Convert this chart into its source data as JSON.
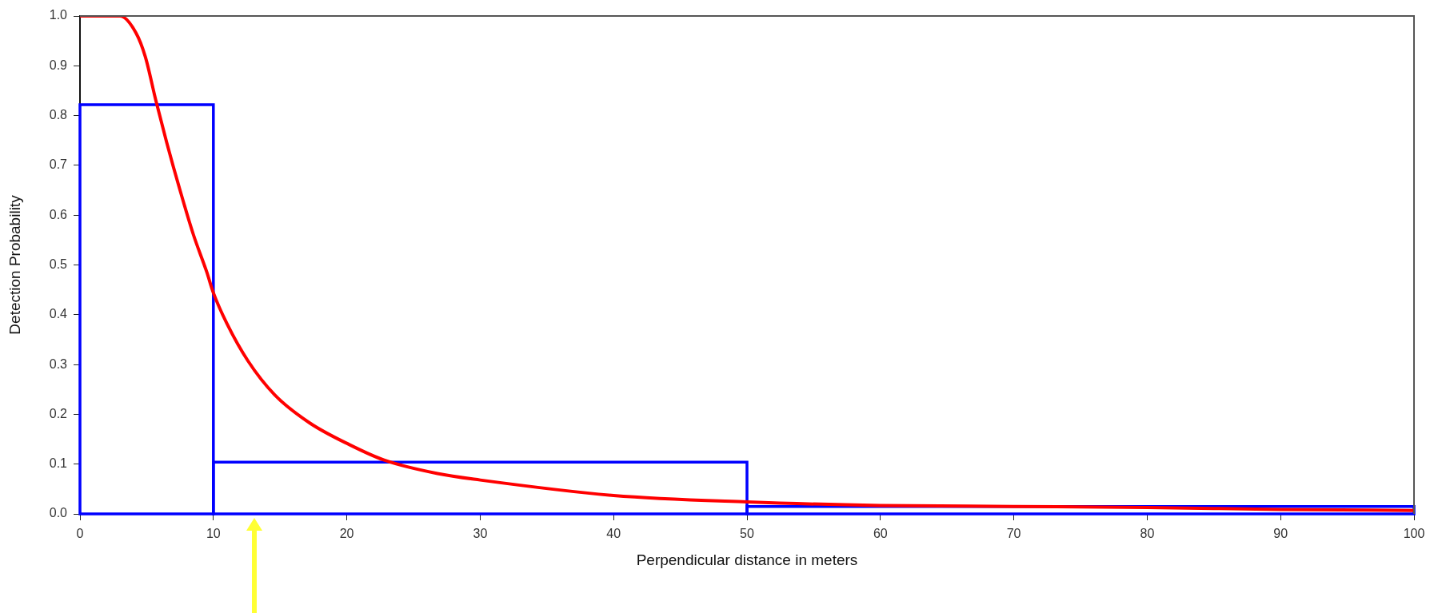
{
  "chart_data": {
    "type": "line",
    "xlabel": "Perpendicular distance in meters",
    "ylabel": "Detection Probability",
    "xlim": [
      0,
      100
    ],
    "xticks": [
      0,
      10,
      20,
      30,
      40,
      50,
      60,
      70,
      80,
      90,
      100
    ],
    "ylim": [
      0,
      1
    ],
    "yticks": [
      {
        "value": 0,
        "label": "0.0"
      },
      {
        "value": 0.1,
        "label": "0.1"
      },
      {
        "value": 0.2,
        "label": "0.2"
      },
      {
        "value": 0.3,
        "label": "0.3"
      },
      {
        "value": 0.4,
        "label": "0.4"
      },
      {
        "value": 0.5,
        "label": "0.5"
      },
      {
        "value": 0.6,
        "label": "0.6"
      },
      {
        "value": 0.7,
        "label": "0.7"
      },
      {
        "value": 0.8,
        "label": "0.8"
      },
      {
        "value": 0.9,
        "label": "0.9"
      },
      {
        "value": 1,
        "label": "1.0"
      }
    ],
    "series": [
      {
        "type": "histogram",
        "color": "#0000ff",
        "bins": [
          0,
          10,
          50,
          100
        ],
        "values": [
          0.822,
          0.104,
          0.015
        ]
      },
      {
        "type": "line",
        "color": "#ff0000",
        "x": [
          0,
          3,
          4.2,
          4.9,
          5.7,
          6.5,
          7.5,
          8.5,
          9.5,
          10,
          11,
          12.6,
          14.6,
          17.2,
          20.2,
          22.8,
          26.8,
          30,
          40,
          50,
          60,
          70,
          80,
          90,
          100
        ],
        "values": [
          1,
          1,
          0.966,
          0.918,
          0.829,
          0.746,
          0.65,
          0.561,
          0.486,
          0.444,
          0.383,
          0.307,
          0.239,
          0.183,
          0.139,
          0.108,
          0.081,
          0.068,
          0.037,
          0.024,
          0.017,
          0.015,
          0.013,
          0.009,
          0.007
        ]
      }
    ]
  }
}
